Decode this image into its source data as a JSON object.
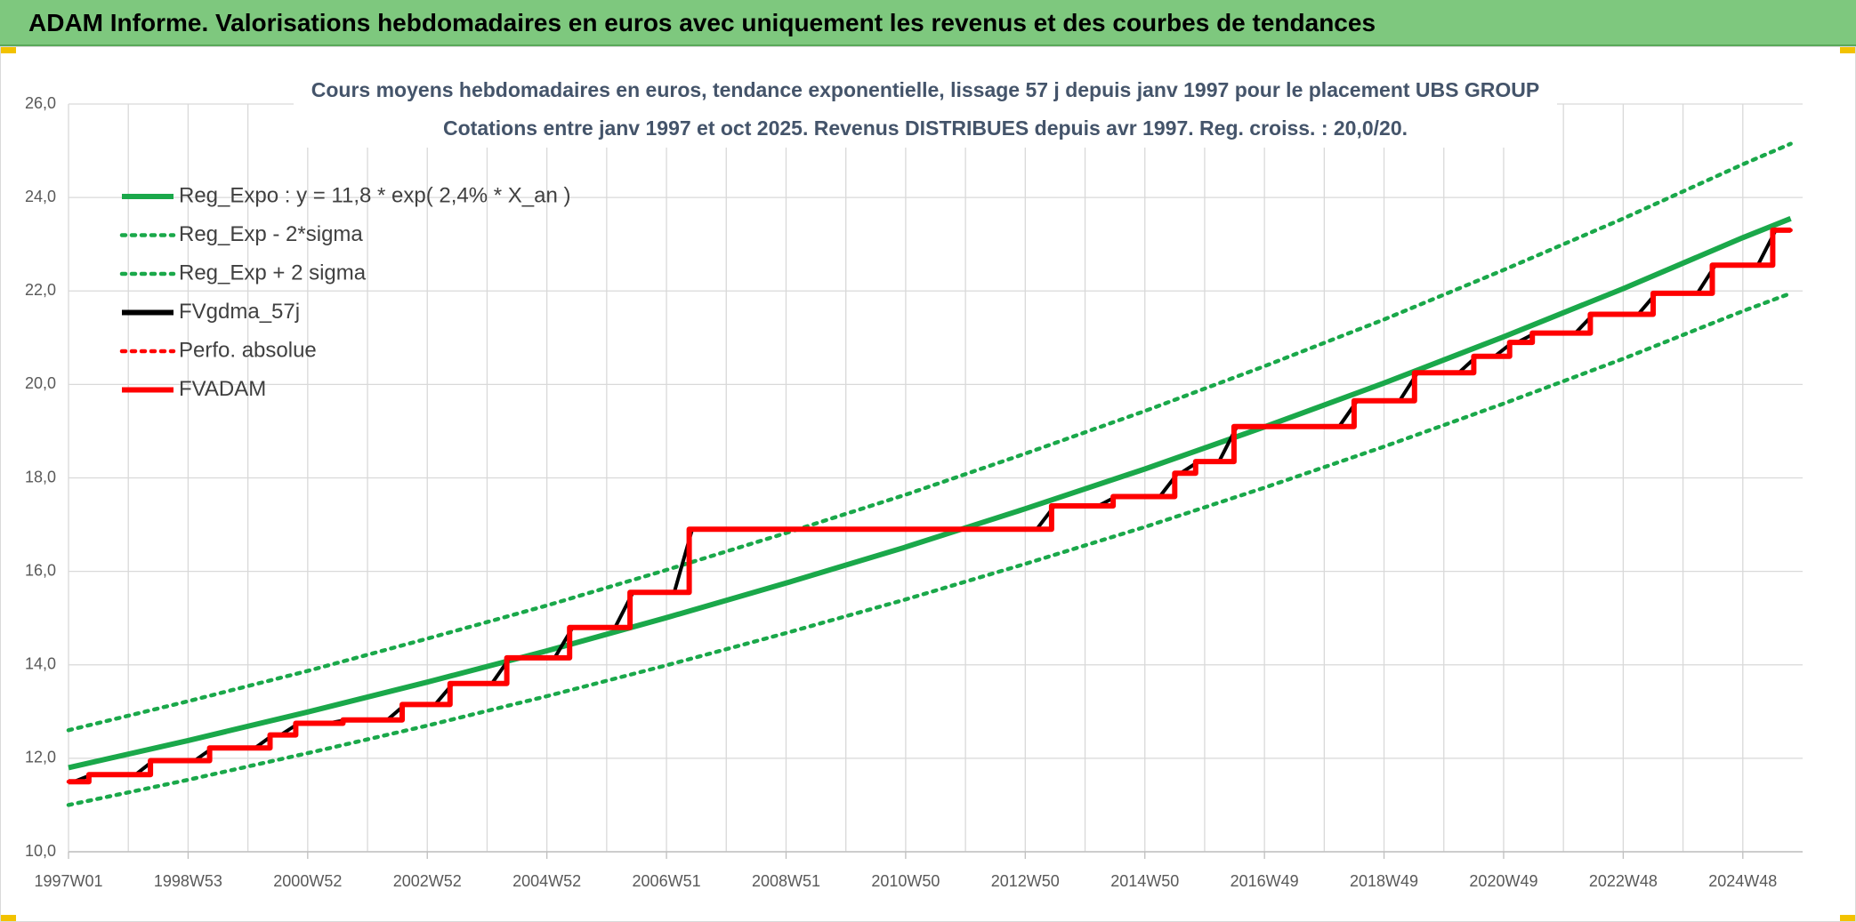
{
  "header": {
    "title": "ADAM Informe. Valorisations hebdomadaires en euros avec uniquement les revenus et des courbes de tendances"
  },
  "chart_data": {
    "type": "line",
    "title": "Cours moyens hebdomadaires en euros, tendance exponentielle, lissage 57 j depuis janv 1997 pour le placement UBS GROUP",
    "subtitle": "Cotations entre janv 1997 et oct 2025. Revenus DISTRIBUES depuis avr 1997. Reg. croiss. : 20,0/20.",
    "xlim": [
      1997.0,
      2026.0
    ],
    "xticks": [
      {
        "value": 1997,
        "label": "1997W01"
      },
      {
        "value": 1999,
        "label": "1998W53"
      },
      {
        "value": 2001,
        "label": "2000W52"
      },
      {
        "value": 2003,
        "label": "2002W52"
      },
      {
        "value": 2005,
        "label": "2004W52"
      },
      {
        "value": 2007,
        "label": "2006W51"
      },
      {
        "value": 2009,
        "label": "2008W51"
      },
      {
        "value": 2011,
        "label": "2010W50"
      },
      {
        "value": 2013,
        "label": "2012W50"
      },
      {
        "value": 2015,
        "label": "2014W50"
      },
      {
        "value": 2017,
        "label": "2016W49"
      },
      {
        "value": 2019,
        "label": "2018W49"
      },
      {
        "value": 2021,
        "label": "2020W49"
      },
      {
        "value": 2023,
        "label": "2022W48"
      },
      {
        "value": 2025,
        "label": "2024W48"
      }
    ],
    "ylim": [
      10,
      26
    ],
    "yticks": [
      {
        "value": 10,
        "label": "10,0"
      },
      {
        "value": 12,
        "label": "12,0"
      },
      {
        "value": 14,
        "label": "14,0"
      },
      {
        "value": 16,
        "label": "16,0"
      },
      {
        "value": 18,
        "label": "18,0"
      },
      {
        "value": 20,
        "label": "20,0"
      },
      {
        "value": 22,
        "label": "22,0"
      },
      {
        "value": 24,
        "label": "24,0"
      },
      {
        "value": 26,
        "label": "26,0"
      }
    ],
    "grid": true,
    "legend": "top-left",
    "series": [
      {
        "name": "Reg_Expo : y = 11,8 * exp( 2,4% *  X_an )",
        "color": "#1aa84a",
        "style": "solid",
        "x": [
          1997,
          1999,
          2001,
          2003,
          2005,
          2007,
          2009,
          2011,
          2013,
          2015,
          2017,
          2019,
          2021,
          2023,
          2025,
          2025.8
        ],
        "values": [
          11.8,
          12.38,
          12.99,
          13.63,
          14.3,
          15.01,
          15.75,
          16.52,
          17.34,
          18.19,
          19.09,
          20.03,
          21.02,
          22.05,
          23.14,
          23.55
        ]
      },
      {
        "name": "Reg_Exp - 2*sigma",
        "color": "#1aa84a",
        "style": "dotted",
        "x": [
          1997,
          1999,
          2001,
          2003,
          2005,
          2007,
          2009,
          2011,
          2013,
          2015,
          2017,
          2019,
          2021,
          2023,
          2025,
          2025.8
        ],
        "values": [
          11.0,
          11.54,
          12.11,
          12.7,
          13.33,
          13.99,
          14.68,
          15.4,
          16.16,
          16.95,
          17.79,
          18.67,
          19.59,
          20.55,
          21.57,
          21.95
        ]
      },
      {
        "name": "Reg_Exp + 2 sigma",
        "color": "#1aa84a",
        "style": "dotted",
        "x": [
          1997,
          1999,
          2001,
          2003,
          2005,
          2007,
          2009,
          2011,
          2013,
          2015,
          2017,
          2019,
          2021,
          2023,
          2025,
          2025.8
        ],
        "values": [
          12.6,
          13.22,
          13.87,
          14.56,
          15.27,
          16.03,
          16.82,
          17.64,
          18.52,
          19.43,
          20.39,
          21.39,
          22.45,
          23.55,
          24.71,
          25.15
        ]
      },
      {
        "name": "FVgdma_57j",
        "color": "#000000",
        "style": "solid",
        "x": [
          1997.0,
          1997.09,
          1997.39,
          1998.12,
          1998.42,
          1999.11,
          1999.41,
          2000.12,
          2000.42,
          2000.55,
          2000.85,
          2001.34,
          2001.64,
          2002.33,
          2002.63,
          2003.13,
          2003.43,
          2004.08,
          2004.38,
          2005.13,
          2005.43,
          2006.14,
          2006.44,
          2007.13,
          2007.43,
          2013.19,
          2013.49,
          2014.22,
          2014.52,
          2015.25,
          2015.55,
          2015.6,
          2015.9,
          2016.24,
          2016.54,
          2018.25,
          2018.55,
          2019.26,
          2019.56,
          2020.25,
          2020.55,
          2020.85,
          2021.15,
          2021.23,
          2021.53,
          2022.2,
          2022.5,
          2023.25,
          2023.55,
          2024.24,
          2024.54,
          2025.25,
          2025.55,
          2025.8
        ],
        "values": [
          11.5,
          11.5,
          11.65,
          11.65,
          11.95,
          11.95,
          12.22,
          12.22,
          12.5,
          12.5,
          12.75,
          12.75,
          12.82,
          12.82,
          13.15,
          13.15,
          13.6,
          13.6,
          14.15,
          14.15,
          14.8,
          14.8,
          15.55,
          15.55,
          16.9,
          16.9,
          17.4,
          17.4,
          17.6,
          17.6,
          18.1,
          18.1,
          18.35,
          18.35,
          19.1,
          19.1,
          19.65,
          19.65,
          20.25,
          20.25,
          20.6,
          20.6,
          20.9,
          20.9,
          21.1,
          21.1,
          21.5,
          21.5,
          21.95,
          21.95,
          22.55,
          22.55,
          23.3,
          23.3
        ]
      },
      {
        "name": "Perfo. absolue",
        "color": "#ff0000",
        "style": "dotted",
        "x": [
          1997.0,
          1997.34,
          1997.34,
          1998.37,
          1998.37,
          1999.36,
          1999.36,
          2000.37,
          2000.37,
          2000.8,
          2000.8,
          2001.59,
          2001.59,
          2002.58,
          2002.58,
          2003.38,
          2003.38,
          2004.33,
          2004.33,
          2005.38,
          2005.38,
          2006.39,
          2006.39,
          2007.38,
          2007.38,
          2013.44,
          2013.44,
          2014.47,
          2014.47,
          2015.5,
          2015.5,
          2015.85,
          2015.85,
          2016.49,
          2016.49,
          2018.5,
          2018.5,
          2019.51,
          2019.51,
          2020.5,
          2020.5,
          2021.1,
          2021.1,
          2021.48,
          2021.48,
          2022.45,
          2022.45,
          2023.5,
          2023.5,
          2024.49,
          2024.49,
          2025.5,
          2025.5,
          2025.8
        ],
        "values": [
          11.5,
          11.5,
          11.65,
          11.65,
          11.95,
          11.95,
          12.22,
          12.22,
          12.5,
          12.5,
          12.75,
          12.75,
          12.82,
          12.82,
          13.15,
          13.15,
          13.6,
          13.6,
          14.15,
          14.15,
          14.8,
          14.8,
          15.55,
          15.55,
          16.9,
          16.9,
          17.4,
          17.4,
          17.6,
          17.6,
          18.1,
          18.1,
          18.35,
          18.35,
          19.1,
          19.1,
          19.65,
          19.65,
          20.25,
          20.25,
          20.6,
          20.6,
          20.9,
          20.9,
          21.1,
          21.1,
          21.5,
          21.5,
          21.95,
          21.95,
          22.55,
          22.55,
          23.3,
          23.3
        ]
      },
      {
        "name": "FVADAM",
        "color": "#ff0000",
        "style": "solid",
        "x": [
          1997.0,
          1997.34,
          1997.34,
          1998.37,
          1998.37,
          1999.36,
          1999.36,
          2000.37,
          2000.37,
          2000.8,
          2000.8,
          2001.59,
          2001.59,
          2002.58,
          2002.58,
          2003.38,
          2003.38,
          2004.33,
          2004.33,
          2005.38,
          2005.38,
          2006.39,
          2006.39,
          2007.38,
          2007.38,
          2013.44,
          2013.44,
          2014.47,
          2014.47,
          2015.5,
          2015.5,
          2015.85,
          2015.85,
          2016.49,
          2016.49,
          2018.5,
          2018.5,
          2019.51,
          2019.51,
          2020.5,
          2020.5,
          2021.1,
          2021.1,
          2021.48,
          2021.48,
          2022.45,
          2022.45,
          2023.5,
          2023.5,
          2024.49,
          2024.49,
          2025.5,
          2025.5,
          2025.8
        ],
        "values": [
          11.5,
          11.5,
          11.65,
          11.65,
          11.95,
          11.95,
          12.22,
          12.22,
          12.5,
          12.5,
          12.75,
          12.75,
          12.82,
          12.82,
          13.15,
          13.15,
          13.6,
          13.6,
          14.15,
          14.15,
          14.8,
          14.8,
          15.55,
          15.55,
          16.9,
          16.9,
          17.4,
          17.4,
          17.6,
          17.6,
          18.1,
          18.1,
          18.35,
          18.35,
          19.1,
          19.1,
          19.65,
          19.65,
          20.25,
          20.25,
          20.6,
          20.6,
          20.9,
          20.9,
          21.1,
          21.1,
          21.5,
          21.5,
          21.95,
          21.95,
          22.55,
          22.55,
          23.3,
          23.3
        ]
      }
    ]
  }
}
